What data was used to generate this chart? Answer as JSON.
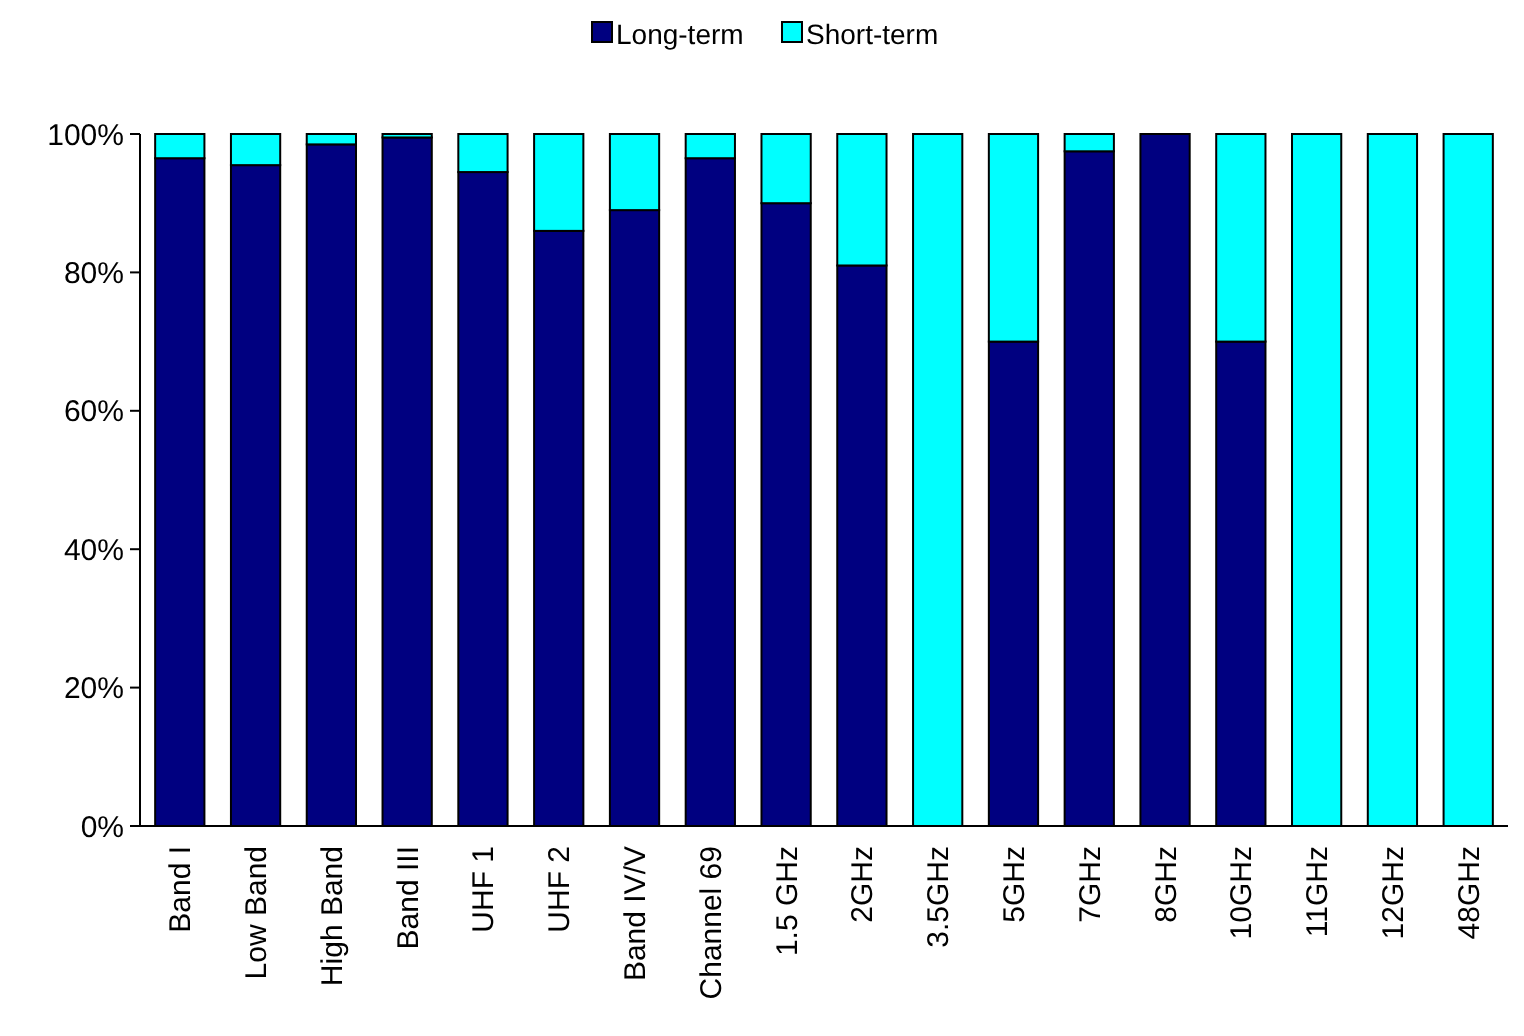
{
  "chart_data": {
    "type": "bar",
    "stacked": true,
    "categories": [
      "Band I",
      "Low Band",
      "High Band",
      "Band III",
      "UHF 1",
      "UHF 2",
      "Band IV/V",
      "Channel 69",
      "1.5 GHz",
      "2GHz",
      "3.5GHz",
      "5GHz",
      "7GHz",
      "8GHz",
      "10GHz",
      "11GHz",
      "12GHz",
      "48GHz"
    ],
    "series": [
      {
        "name": "Long-term",
        "color": "#000080",
        "values": [
          96.5,
          95.5,
          98.5,
          99.5,
          94.5,
          86,
          89,
          96.5,
          90,
          81,
          0,
          70,
          97.5,
          100,
          70,
          0,
          0,
          0
        ]
      },
      {
        "name": "Short-term",
        "color": "#00ffff",
        "values": [
          3.5,
          4.5,
          1.5,
          0.5,
          5.5,
          14,
          11,
          3.5,
          10,
          19,
          100,
          30,
          2.5,
          0,
          30,
          100,
          100,
          100
        ]
      }
    ],
    "ylim": [
      0,
      100
    ],
    "yticks": [
      {
        "value": 0,
        "label": "0%"
      },
      {
        "value": 20,
        "label": "20%"
      },
      {
        "value": 40,
        "label": "40%"
      },
      {
        "value": 60,
        "label": "60%"
      },
      {
        "value": 80,
        "label": "80%"
      },
      {
        "value": 100,
        "label": "100%"
      }
    ],
    "grid": false,
    "legend": "top"
  }
}
